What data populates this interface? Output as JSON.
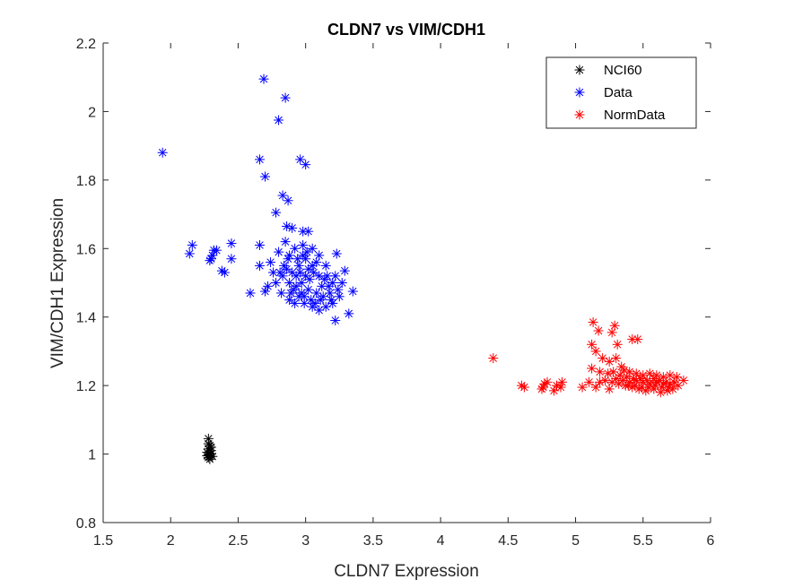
{
  "chart_data": {
    "type": "scatter",
    "title": "CLDN7 vs VIM/CDH1",
    "xlabel": "CLDN7 Expression",
    "ylabel": "VIM/CDH1 Expression",
    "xlim": [
      1.5,
      6
    ],
    "ylim": [
      0.8,
      2.2
    ],
    "xticks": [
      1.5,
      2,
      2.5,
      3,
      3.5,
      4,
      4.5,
      5,
      5.5,
      6
    ],
    "xtick_labels": [
      "1.5",
      "2",
      "2.5",
      "3",
      "3.5",
      "4",
      "4.5",
      "5",
      "5.5",
      "6"
    ],
    "yticks": [
      0.8,
      1,
      1.2,
      1.4,
      1.6,
      1.8,
      2,
      2.2
    ],
    "ytick_labels": [
      "0.8",
      "1",
      "1.2",
      "1.4",
      "1.6",
      "1.8",
      "2",
      "2.2"
    ],
    "grid": false,
    "legend_position": "top-right",
    "marker": "asterisk",
    "series": [
      {
        "name": "NCI60",
        "color": "#000000",
        "points": [
          [
            2.28,
            1.045
          ],
          [
            2.29,
            1.025
          ],
          [
            2.28,
            1.015
          ],
          [
            2.3,
            1.01
          ],
          [
            2.27,
            1.005
          ],
          [
            2.29,
            1.0
          ],
          [
            2.3,
            1.0
          ],
          [
            2.28,
            0.998
          ],
          [
            2.29,
            0.995
          ],
          [
            2.31,
            0.993
          ],
          [
            2.28,
            0.99
          ],
          [
            2.29,
            0.985
          ],
          [
            2.3,
            1.02
          ],
          [
            2.28,
            1.03
          ],
          [
            2.27,
            0.995
          ]
        ]
      },
      {
        "name": "Data",
        "color": "#0000ff",
        "points": [
          [
            1.94,
            1.88
          ],
          [
            2.69,
            2.095
          ],
          [
            2.85,
            2.04
          ],
          [
            2.8,
            1.975
          ],
          [
            2.96,
            1.86
          ],
          [
            2.66,
            1.86
          ],
          [
            3.0,
            1.845
          ],
          [
            2.7,
            1.81
          ],
          [
            2.83,
            1.755
          ],
          [
            2.87,
            1.74
          ],
          [
            2.78,
            1.705
          ],
          [
            2.86,
            1.665
          ],
          [
            2.9,
            1.66
          ],
          [
            2.98,
            1.65
          ],
          [
            3.02,
            1.65
          ],
          [
            2.16,
            1.61
          ],
          [
            2.14,
            1.585
          ],
          [
            2.45,
            1.615
          ],
          [
            2.32,
            1.595
          ],
          [
            2.34,
            1.595
          ],
          [
            2.3,
            1.57
          ],
          [
            2.29,
            1.565
          ],
          [
            2.31,
            1.58
          ],
          [
            2.45,
            1.57
          ],
          [
            2.38,
            1.535
          ],
          [
            2.4,
            1.53
          ],
          [
            2.59,
            1.47
          ],
          [
            2.66,
            1.61
          ],
          [
            2.66,
            1.55
          ],
          [
            2.7,
            1.475
          ],
          [
            3.23,
            1.585
          ],
          [
            3.29,
            1.535
          ],
          [
            3.35,
            1.475
          ],
          [
            3.32,
            1.41
          ],
          [
            3.22,
            1.39
          ],
          [
            2.72,
            1.49
          ],
          [
            2.74,
            1.56
          ],
          [
            2.8,
            1.59
          ],
          [
            2.85,
            1.62
          ],
          [
            2.78,
            1.5
          ],
          [
            2.82,
            1.47
          ],
          [
            2.88,
            1.45
          ],
          [
            2.92,
            1.44
          ],
          [
            2.95,
            1.46
          ],
          [
            3.05,
            1.43
          ],
          [
            3.1,
            1.42
          ],
          [
            3.15,
            1.43
          ],
          [
            3.2,
            1.44
          ],
          [
            3.18,
            1.47
          ],
          [
            3.25,
            1.46
          ],
          [
            3.27,
            1.5
          ],
          [
            3.22,
            1.52
          ],
          [
            3.15,
            1.55
          ],
          [
            3.1,
            1.58
          ],
          [
            3.05,
            1.6
          ],
          [
            2.98,
            1.61
          ],
          [
            2.92,
            1.6
          ],
          [
            2.88,
            1.58
          ],
          [
            2.84,
            1.55
          ],
          [
            2.83,
            1.52
          ],
          [
            2.9,
            1.53
          ],
          [
            2.95,
            1.55
          ],
          [
            3.0,
            1.57
          ],
          [
            3.05,
            1.55
          ],
          [
            3.1,
            1.52
          ],
          [
            3.12,
            1.49
          ],
          [
            3.08,
            1.47
          ],
          [
            3.02,
            1.48
          ],
          [
            2.97,
            1.5
          ],
          [
            2.93,
            1.52
          ],
          [
            2.88,
            1.5
          ],
          [
            2.91,
            1.48
          ],
          [
            2.99,
            1.46
          ],
          [
            3.04,
            1.45
          ],
          [
            3.13,
            1.46
          ],
          [
            3.17,
            1.49
          ],
          [
            3.2,
            1.5
          ],
          [
            3.0,
            1.52
          ],
          [
            3.03,
            1.51
          ],
          [
            2.96,
            1.53
          ],
          [
            2.94,
            1.57
          ],
          [
            3.08,
            1.56
          ],
          [
            2.86,
            1.54
          ],
          [
            2.81,
            1.53
          ],
          [
            3.14,
            1.51
          ],
          [
            3.24,
            1.48
          ],
          [
            3.07,
            1.44
          ],
          [
            2.99,
            1.44
          ],
          [
            2.89,
            1.47
          ],
          [
            2.76,
            1.53
          ],
          [
            2.98,
            1.58
          ],
          [
            3.01,
            1.59
          ],
          [
            3.06,
            1.53
          ],
          [
            3.11,
            1.45
          ],
          [
            3.16,
            1.52
          ],
          [
            2.87,
            1.57
          ],
          [
            2.93,
            1.49
          ],
          [
            3.02,
            1.54
          ],
          [
            3.19,
            1.45
          ],
          [
            2.97,
            1.47
          ]
        ]
      },
      {
        "name": "NormData",
        "color": "#ff0000",
        "points": [
          [
            4.39,
            1.28
          ],
          [
            4.6,
            1.2
          ],
          [
            4.62,
            1.195
          ],
          [
            4.76,
            1.195
          ],
          [
            4.77,
            1.205
          ],
          [
            4.79,
            1.21
          ],
          [
            4.75,
            1.19
          ],
          [
            4.84,
            1.185
          ],
          [
            4.86,
            1.2
          ],
          [
            4.9,
            1.21
          ],
          [
            4.89,
            1.195
          ],
          [
            5.05,
            1.195
          ],
          [
            5.1,
            1.21
          ],
          [
            5.13,
            1.385
          ],
          [
            5.17,
            1.36
          ],
          [
            5.12,
            1.32
          ],
          [
            5.15,
            1.3
          ],
          [
            5.29,
            1.375
          ],
          [
            5.27,
            1.355
          ],
          [
            5.31,
            1.32
          ],
          [
            5.42,
            1.335
          ],
          [
            5.46,
            1.335
          ],
          [
            5.2,
            1.28
          ],
          [
            5.25,
            1.27
          ],
          [
            5.3,
            1.28
          ],
          [
            5.12,
            1.25
          ],
          [
            5.18,
            1.24
          ],
          [
            5.24,
            1.235
          ],
          [
            5.36,
            1.245
          ],
          [
            5.4,
            1.24
          ],
          [
            5.45,
            1.235
          ],
          [
            5.5,
            1.23
          ],
          [
            5.55,
            1.235
          ],
          [
            5.6,
            1.23
          ],
          [
            5.65,
            1.225
          ],
          [
            5.7,
            1.23
          ],
          [
            5.75,
            1.225
          ],
          [
            5.8,
            1.215
          ],
          [
            5.76,
            1.2
          ],
          [
            5.72,
            1.19
          ],
          [
            5.68,
            1.185
          ],
          [
            5.63,
            1.18
          ],
          [
            5.58,
            1.19
          ],
          [
            5.52,
            1.185
          ],
          [
            5.47,
            1.19
          ],
          [
            5.42,
            1.195
          ],
          [
            5.37,
            1.2
          ],
          [
            5.32,
            1.205
          ],
          [
            5.27,
            1.21
          ],
          [
            5.22,
            1.215
          ],
          [
            5.18,
            1.21
          ],
          [
            5.15,
            1.195
          ],
          [
            5.25,
            1.19
          ],
          [
            5.3,
            1.22
          ],
          [
            5.35,
            1.215
          ],
          [
            5.4,
            1.21
          ],
          [
            5.45,
            1.215
          ],
          [
            5.5,
            1.21
          ],
          [
            5.55,
            1.205
          ],
          [
            5.6,
            1.21
          ],
          [
            5.65,
            1.205
          ],
          [
            5.7,
            1.205
          ],
          [
            5.33,
            1.23
          ],
          [
            5.38,
            1.225
          ],
          [
            5.43,
            1.22
          ],
          [
            5.48,
            1.22
          ],
          [
            5.53,
            1.215
          ],
          [
            5.58,
            1.22
          ],
          [
            5.62,
            1.215
          ],
          [
            5.67,
            1.21
          ],
          [
            5.28,
            1.24
          ],
          [
            5.34,
            1.255
          ],
          [
            5.39,
            1.2
          ],
          [
            5.44,
            1.2
          ],
          [
            5.49,
            1.195
          ],
          [
            5.54,
            1.195
          ],
          [
            5.59,
            1.2
          ],
          [
            5.64,
            1.195
          ],
          [
            5.69,
            1.195
          ],
          [
            5.73,
            1.21
          ]
        ]
      }
    ]
  }
}
